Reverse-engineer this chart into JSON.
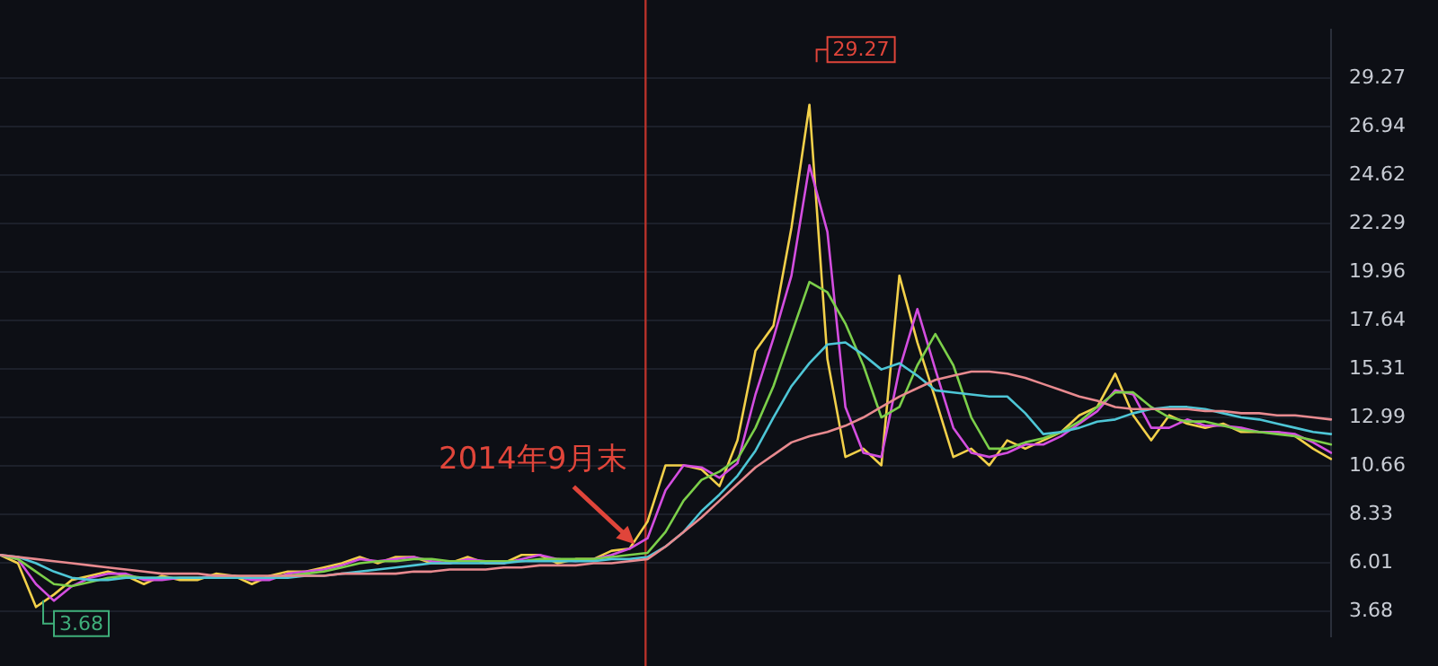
{
  "chart_data": {
    "type": "line",
    "categories": [
      null,
      null,
      null,
      null,
      null,
      null,
      null,
      null,
      null,
      null,
      null,
      null,
      null,
      null,
      null,
      null,
      null,
      null,
      null,
      null,
      null,
      null,
      null,
      null,
      null,
      null,
      null,
      null,
      null,
      null,
      null,
      null,
      null,
      null,
      null,
      null,
      null,
      null,
      null,
      null,
      null,
      null,
      null,
      null,
      null,
      null,
      null,
      null,
      null,
      null,
      null,
      null,
      null,
      null,
      null,
      null,
      null,
      null,
      null,
      null,
      null,
      null,
      null,
      null,
      null,
      null,
      null,
      null,
      null,
      null,
      null,
      null,
      null,
      null,
      null
    ],
    "series": [
      {
        "color": "#e88a8f",
        "values": [
          6.4,
          6.3,
          6.2,
          6.1,
          6.0,
          5.9,
          5.8,
          5.7,
          5.6,
          5.5,
          5.5,
          5.5,
          5.4,
          5.4,
          5.4,
          5.4,
          5.4,
          5.4,
          5.4,
          5.5,
          5.5,
          5.5,
          5.5,
          5.6,
          5.6,
          5.7,
          5.7,
          5.7,
          5.8,
          5.8,
          5.9,
          5.9,
          5.9,
          6.0,
          6.0,
          6.1,
          6.2,
          6.8,
          7.5,
          8.2,
          9.0,
          9.8,
          10.6,
          11.2,
          11.8,
          12.1,
          12.3,
          12.6,
          13.0,
          13.5,
          14.0,
          14.4,
          14.8,
          15.0,
          15.2,
          15.2,
          15.1,
          14.9,
          14.6,
          14.3,
          14.0,
          13.8,
          13.5,
          13.4,
          13.4,
          13.4,
          13.4,
          13.3,
          13.3,
          13.2,
          13.2,
          13.1,
          13.1,
          13.0,
          12.9
        ]
      },
      {
        "color": "#4ec6d6",
        "values": [
          6.4,
          6.3,
          6.0,
          5.6,
          5.3,
          5.2,
          5.2,
          5.3,
          5.3,
          5.3,
          5.3,
          5.3,
          5.3,
          5.3,
          5.3,
          5.3,
          5.3,
          5.4,
          5.4,
          5.5,
          5.6,
          5.7,
          5.8,
          5.9,
          6.0,
          6.0,
          6.0,
          6.0,
          6.0,
          6.1,
          6.1,
          6.1,
          6.1,
          6.1,
          6.2,
          6.2,
          6.3,
          6.8,
          7.5,
          8.5,
          9.3,
          10.2,
          11.4,
          13.0,
          14.5,
          15.6,
          16.5,
          16.6,
          16.0,
          15.3,
          15.6,
          15.0,
          14.3,
          14.2,
          14.1,
          14.0,
          14.0,
          13.2,
          12.2,
          12.3,
          12.5,
          12.8,
          12.9,
          13.2,
          13.4,
          13.5,
          13.5,
          13.4,
          13.2,
          13.0,
          12.9,
          12.7,
          12.5,
          12.3,
          12.2
        ]
      },
      {
        "color": "#7ccf4a",
        "values": [
          6.4,
          6.2,
          5.6,
          5.0,
          4.9,
          5.1,
          5.3,
          5.4,
          5.3,
          5.3,
          5.3,
          5.3,
          5.3,
          5.4,
          5.3,
          5.3,
          5.4,
          5.5,
          5.6,
          5.8,
          6.0,
          6.1,
          6.1,
          6.2,
          6.2,
          6.1,
          6.1,
          6.1,
          6.1,
          6.1,
          6.2,
          6.2,
          6.2,
          6.2,
          6.3,
          6.4,
          6.5,
          7.5,
          9.0,
          10.0,
          10.4,
          11.0,
          12.5,
          14.5,
          17.0,
          19.5,
          19.0,
          17.5,
          15.5,
          13.0,
          13.5,
          15.5,
          17.0,
          15.5,
          13.0,
          11.5,
          11.5,
          11.8,
          12.0,
          12.3,
          12.8,
          13.5,
          14.2,
          14.2,
          13.5,
          13.0,
          12.8,
          12.8,
          12.6,
          12.4,
          12.3,
          12.2,
          12.1,
          11.9,
          11.7
        ]
      },
      {
        "color": "#d44ee0",
        "values": [
          6.4,
          6.2,
          5.0,
          4.2,
          4.9,
          5.3,
          5.5,
          5.5,
          5.2,
          5.2,
          5.3,
          5.3,
          5.4,
          5.4,
          5.2,
          5.2,
          5.5,
          5.6,
          5.7,
          5.9,
          6.2,
          6.1,
          6.2,
          6.3,
          6.1,
          6.0,
          6.2,
          6.1,
          6.0,
          6.2,
          6.4,
          6.2,
          6.1,
          6.2,
          6.4,
          6.7,
          7.2,
          9.5,
          10.7,
          10.6,
          10.1,
          10.8,
          14.1,
          16.8,
          19.8,
          25.1,
          21.9,
          13.5,
          11.3,
          11.1,
          15.3,
          18.2,
          15.3,
          12.5,
          11.3,
          11.1,
          11.3,
          11.7,
          11.7,
          12.1,
          12.7,
          13.3,
          14.3,
          14.1,
          12.5,
          12.5,
          12.9,
          12.6,
          12.6,
          12.5,
          12.3,
          12.3,
          12.2,
          11.8,
          11.3
        ]
      },
      {
        "color": "#f2d04a",
        "values": [
          6.4,
          6.0,
          3.9,
          4.5,
          5.2,
          5.4,
          5.6,
          5.4,
          5.0,
          5.4,
          5.2,
          5.2,
          5.5,
          5.4,
          5.0,
          5.4,
          5.6,
          5.6,
          5.8,
          6.0,
          6.3,
          6.0,
          6.3,
          6.3,
          6.0,
          6.0,
          6.3,
          6.0,
          6.0,
          6.4,
          6.4,
          6.0,
          6.2,
          6.2,
          6.6,
          6.7,
          8.0,
          10.7,
          10.7,
          10.5,
          9.7,
          11.9,
          16.2,
          17.4,
          22.1,
          28.0,
          15.8,
          11.1,
          11.5,
          10.7,
          19.8,
          16.6,
          13.9,
          11.1,
          11.5,
          10.7,
          11.9,
          11.5,
          11.9,
          12.3,
          13.1,
          13.5,
          15.1,
          13.1,
          11.9,
          13.1,
          12.7,
          12.5,
          12.7,
          12.3,
          12.3,
          12.3,
          12.1,
          11.5,
          11.0
        ]
      }
    ],
    "ylim": [
      2.5,
      31.6
    ],
    "yticks": [
      3.68,
      6.01,
      8.33,
      10.66,
      12.99,
      15.31,
      17.64,
      19.96,
      22.29,
      24.62,
      26.94,
      29.27
    ],
    "grid": "y",
    "legend": false,
    "tick_labels": "y",
    "marker": "none",
    "line_style": "solid",
    "annotations": [
      "2014年9月末",
      "29.27",
      "3.68"
    ]
  }
}
